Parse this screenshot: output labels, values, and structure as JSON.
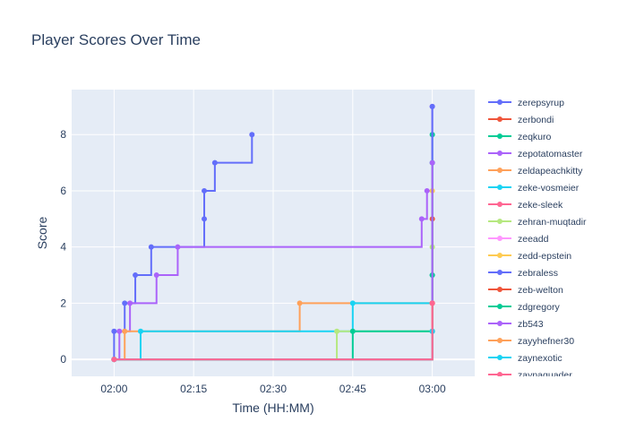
{
  "chart_data": {
    "type": "line",
    "title": "Player Scores Over Time",
    "xlabel": "Time (HH:MM)",
    "ylabel": "Score",
    "x_range": [
      "01:52",
      "03:08"
    ],
    "y_range": [
      -0.6,
      9.6
    ],
    "x_ticks": [
      "02:00",
      "02:15",
      "02:30",
      "02:45",
      "03:00"
    ],
    "y_ticks": [
      0,
      2,
      4,
      6,
      8
    ],
    "grid": true,
    "line_shape": "step-after",
    "legend_position": "right",
    "series": [
      {
        "name": "zerepsyrup",
        "color": "#636efa",
        "points": [
          [
            "02:00",
            0
          ],
          [
            "02:00",
            1
          ],
          [
            "02:02",
            2
          ],
          [
            "02:04",
            3
          ],
          [
            "02:07",
            4
          ],
          [
            "02:17",
            5
          ],
          [
            "02:17",
            6
          ],
          [
            "02:19",
            7
          ],
          [
            "02:26",
            8
          ]
        ]
      },
      {
        "name": "zerbondi",
        "color": "#EF553B",
        "points": [
          [
            "02:00",
            0
          ],
          [
            "03:00",
            5
          ]
        ]
      },
      {
        "name": "zeqkuro",
        "color": "#00cc96",
        "points": [
          [
            "02:00",
            0
          ],
          [
            "03:00",
            8
          ]
        ]
      },
      {
        "name": "zepotatomaster",
        "color": "#ab63fa",
        "points": [
          [
            "02:00",
            0
          ],
          [
            "02:01",
            1
          ],
          [
            "02:03",
            2
          ],
          [
            "02:08",
            3
          ],
          [
            "02:12",
            4
          ],
          [
            "02:58",
            5
          ],
          [
            "02:59",
            6
          ],
          [
            "03:00",
            9
          ]
        ]
      },
      {
        "name": "zeldapeachkitty",
        "color": "#FFA15A",
        "points": [
          [
            "02:00",
            0
          ],
          [
            "02:02",
            1
          ],
          [
            "02:35",
            2
          ],
          [
            "03:00",
            3
          ]
        ]
      },
      {
        "name": "zeke-vosmeier",
        "color": "#19d3f3",
        "points": [
          [
            "02:00",
            0
          ],
          [
            "02:05",
            1
          ],
          [
            "02:45",
            2
          ],
          [
            "03:00",
            3
          ]
        ]
      },
      {
        "name": "zeke-sleek",
        "color": "#FF6692",
        "points": [
          [
            "02:00",
            0
          ],
          [
            "03:00",
            1
          ],
          [
            "03:00",
            2
          ]
        ]
      },
      {
        "name": "zehran-muqtadir",
        "color": "#B6E880",
        "points": [
          [
            "02:00",
            0
          ],
          [
            "02:42",
            1
          ],
          [
            "03:00",
            4
          ]
        ]
      },
      {
        "name": "zeeadd",
        "color": "#FF97FF",
        "points": [
          [
            "02:00",
            0
          ],
          [
            "03:00",
            1
          ]
        ]
      },
      {
        "name": "zedd-epstein",
        "color": "#FECB52",
        "points": [
          [
            "02:00",
            0
          ],
          [
            "03:00",
            6
          ]
        ]
      },
      {
        "name": "zebraless",
        "color": "#636efa",
        "points": [
          [
            "02:00",
            0
          ],
          [
            "03:00",
            9
          ]
        ]
      },
      {
        "name": "zeb-welton",
        "color": "#EF553B",
        "points": [
          [
            "02:00",
            0
          ],
          [
            "03:00",
            2
          ]
        ]
      },
      {
        "name": "zdgregory",
        "color": "#00cc96",
        "points": [
          [
            "02:00",
            0
          ],
          [
            "02:45",
            1
          ],
          [
            "03:00",
            1
          ],
          [
            "03:00",
            3
          ],
          [
            "03:00",
            7
          ]
        ]
      },
      {
        "name": "zb543",
        "color": "#ab63fa",
        "points": [
          [
            "02:00",
            0
          ],
          [
            "03:00",
            7
          ]
        ]
      },
      {
        "name": "zayyhefner30",
        "color": "#FFA15A",
        "points": [
          [
            "02:00",
            0
          ],
          [
            "03:00",
            2
          ]
        ]
      },
      {
        "name": "zaynexotic",
        "color": "#19d3f3",
        "points": [
          [
            "02:00",
            0
          ],
          [
            "03:00",
            1
          ]
        ]
      },
      {
        "name": "zaynaquader",
        "color": "#FF6692",
        "points": [
          [
            "02:00",
            0
          ],
          [
            "03:00",
            2
          ]
        ]
      }
    ]
  }
}
